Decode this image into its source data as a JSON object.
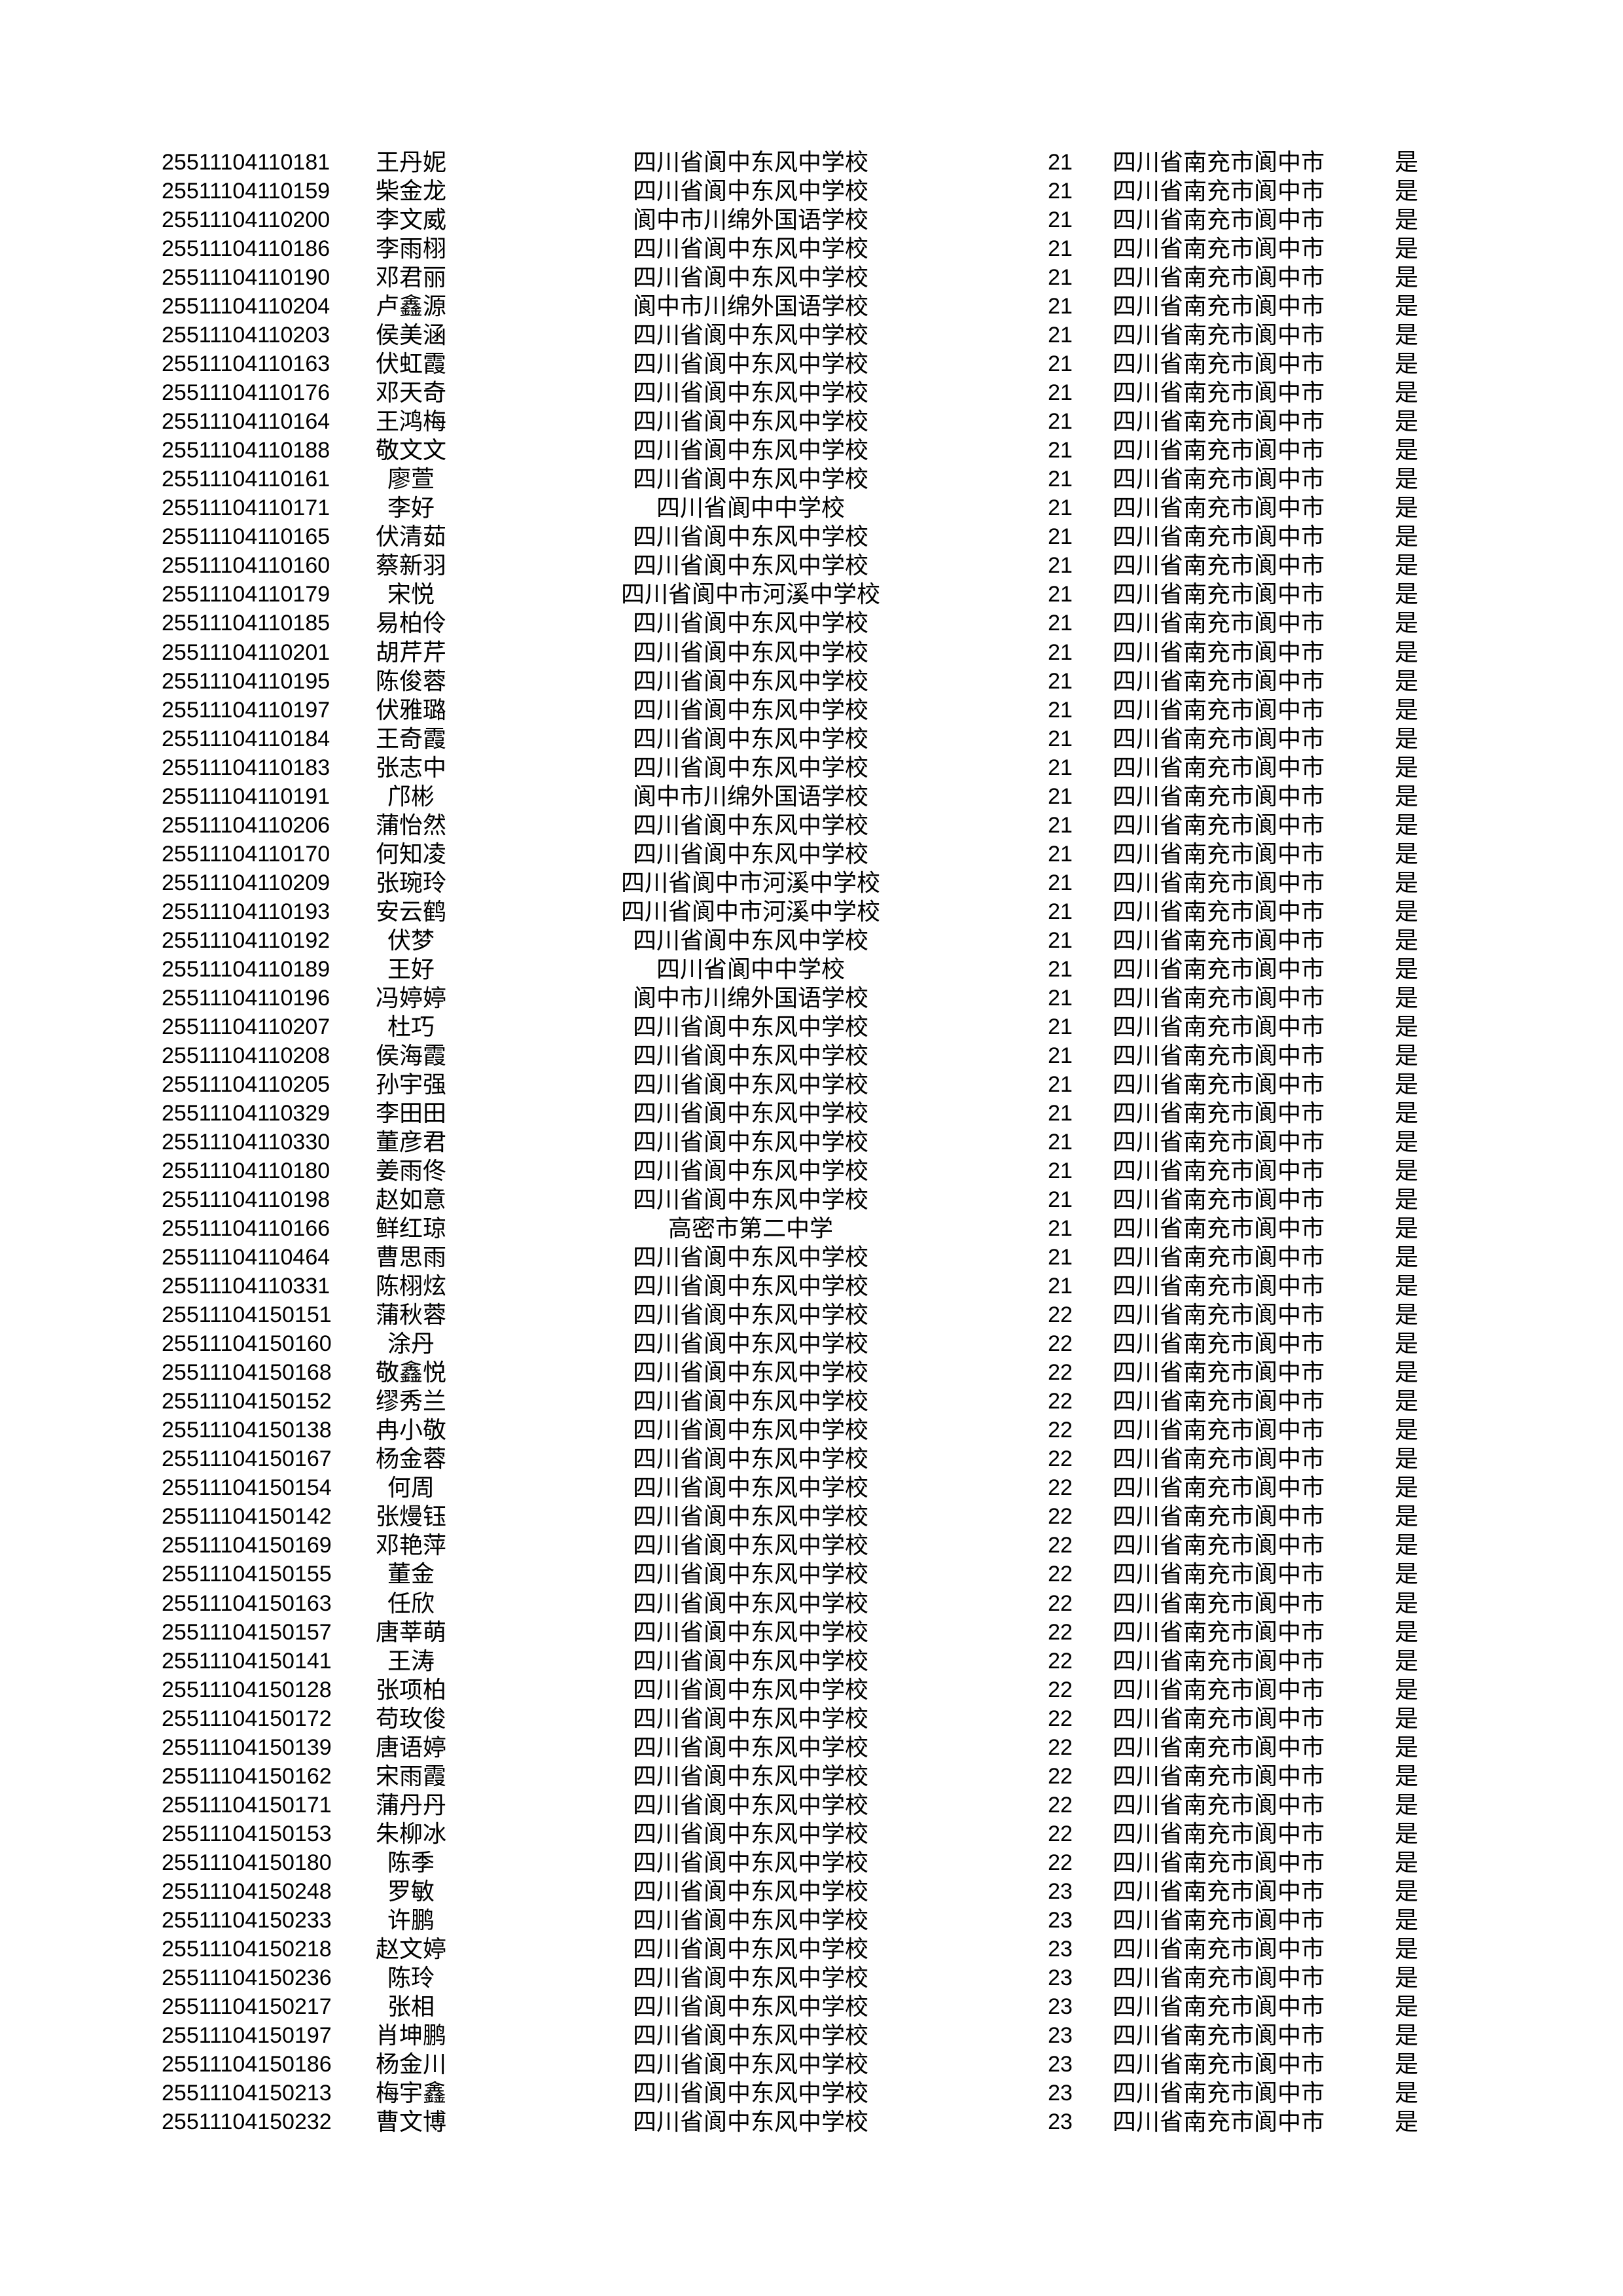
{
  "page": {
    "background": "#ffffff",
    "text_color": "#000000"
  },
  "table": {
    "rows": [
      {
        "id": "25511104110181",
        "name": "王丹妮",
        "school": "四川省阆中东风中学校",
        "num": "21",
        "region": "四川省南充市阆中市",
        "flag": "是"
      },
      {
        "id": "25511104110159",
        "name": "柴金龙",
        "school": "四川省阆中东风中学校",
        "num": "21",
        "region": "四川省南充市阆中市",
        "flag": "是"
      },
      {
        "id": "25511104110200",
        "name": "李文威",
        "school": "阆中市川绵外国语学校",
        "num": "21",
        "region": "四川省南充市阆中市",
        "flag": "是"
      },
      {
        "id": "25511104110186",
        "name": "李雨栩",
        "school": "四川省阆中东风中学校",
        "num": "21",
        "region": "四川省南充市阆中市",
        "flag": "是"
      },
      {
        "id": "25511104110190",
        "name": "邓君丽",
        "school": "四川省阆中东风中学校",
        "num": "21",
        "region": "四川省南充市阆中市",
        "flag": "是"
      },
      {
        "id": "25511104110204",
        "name": "卢鑫源",
        "school": "阆中市川绵外国语学校",
        "num": "21",
        "region": "四川省南充市阆中市",
        "flag": "是"
      },
      {
        "id": "25511104110203",
        "name": "侯美涵",
        "school": "四川省阆中东风中学校",
        "num": "21",
        "region": "四川省南充市阆中市",
        "flag": "是"
      },
      {
        "id": "25511104110163",
        "name": "伏虹霞",
        "school": "四川省阆中东风中学校",
        "num": "21",
        "region": "四川省南充市阆中市",
        "flag": "是"
      },
      {
        "id": "25511104110176",
        "name": "邓天奇",
        "school": "四川省阆中东风中学校",
        "num": "21",
        "region": "四川省南充市阆中市",
        "flag": "是"
      },
      {
        "id": "25511104110164",
        "name": "王鸿梅",
        "school": "四川省阆中东风中学校",
        "num": "21",
        "region": "四川省南充市阆中市",
        "flag": "是"
      },
      {
        "id": "25511104110188",
        "name": "敬文文",
        "school": "四川省阆中东风中学校",
        "num": "21",
        "region": "四川省南充市阆中市",
        "flag": "是"
      },
      {
        "id": "25511104110161",
        "name": "廖萱",
        "school": "四川省阆中东风中学校",
        "num": "21",
        "region": "四川省南充市阆中市",
        "flag": "是"
      },
      {
        "id": "25511104110171",
        "name": "李好",
        "school": "四川省阆中中学校",
        "num": "21",
        "region": "四川省南充市阆中市",
        "flag": "是"
      },
      {
        "id": "25511104110165",
        "name": "伏清茹",
        "school": "四川省阆中东风中学校",
        "num": "21",
        "region": "四川省南充市阆中市",
        "flag": "是"
      },
      {
        "id": "25511104110160",
        "name": "蔡新羽",
        "school": "四川省阆中东风中学校",
        "num": "21",
        "region": "四川省南充市阆中市",
        "flag": "是"
      },
      {
        "id": "25511104110179",
        "name": "宋悦",
        "school": "四川省阆中市河溪中学校",
        "num": "21",
        "region": "四川省南充市阆中市",
        "flag": "是"
      },
      {
        "id": "25511104110185",
        "name": "易柏伶",
        "school": "四川省阆中东风中学校",
        "num": "21",
        "region": "四川省南充市阆中市",
        "flag": "是"
      },
      {
        "id": "25511104110201",
        "name": "胡芹芹",
        "school": "四川省阆中东风中学校",
        "num": "21",
        "region": "四川省南充市阆中市",
        "flag": "是"
      },
      {
        "id": "25511104110195",
        "name": "陈俊蓉",
        "school": "四川省阆中东风中学校",
        "num": "21",
        "region": "四川省南充市阆中市",
        "flag": "是"
      },
      {
        "id": "25511104110197",
        "name": "伏雅璐",
        "school": "四川省阆中东风中学校",
        "num": "21",
        "region": "四川省南充市阆中市",
        "flag": "是"
      },
      {
        "id": "25511104110184",
        "name": "王奇霞",
        "school": "四川省阆中东风中学校",
        "num": "21",
        "region": "四川省南充市阆中市",
        "flag": "是"
      },
      {
        "id": "25511104110183",
        "name": "张志中",
        "school": "四川省阆中东风中学校",
        "num": "21",
        "region": "四川省南充市阆中市",
        "flag": "是"
      },
      {
        "id": "25511104110191",
        "name": "邝彬",
        "school": "阆中市川绵外国语学校",
        "num": "21",
        "region": "四川省南充市阆中市",
        "flag": "是"
      },
      {
        "id": "25511104110206",
        "name": "蒲怡然",
        "school": "四川省阆中东风中学校",
        "num": "21",
        "region": "四川省南充市阆中市",
        "flag": "是"
      },
      {
        "id": "25511104110170",
        "name": "何知凌",
        "school": "四川省阆中东风中学校",
        "num": "21",
        "region": "四川省南充市阆中市",
        "flag": "是"
      },
      {
        "id": "25511104110209",
        "name": "张琬玲",
        "school": "四川省阆中市河溪中学校",
        "num": "21",
        "region": "四川省南充市阆中市",
        "flag": "是"
      },
      {
        "id": "25511104110193",
        "name": "安云鹤",
        "school": "四川省阆中市河溪中学校",
        "num": "21",
        "region": "四川省南充市阆中市",
        "flag": "是"
      },
      {
        "id": "25511104110192",
        "name": "伏梦",
        "school": "四川省阆中东风中学校",
        "num": "21",
        "region": "四川省南充市阆中市",
        "flag": "是"
      },
      {
        "id": "25511104110189",
        "name": "王好",
        "school": "四川省阆中中学校",
        "num": "21",
        "region": "四川省南充市阆中市",
        "flag": "是"
      },
      {
        "id": "25511104110196",
        "name": "冯婷婷",
        "school": "阆中市川绵外国语学校",
        "num": "21",
        "region": "四川省南充市阆中市",
        "flag": "是"
      },
      {
        "id": "25511104110207",
        "name": "杜巧",
        "school": "四川省阆中东风中学校",
        "num": "21",
        "region": "四川省南充市阆中市",
        "flag": "是"
      },
      {
        "id": "25511104110208",
        "name": "侯海霞",
        "school": "四川省阆中东风中学校",
        "num": "21",
        "region": "四川省南充市阆中市",
        "flag": "是"
      },
      {
        "id": "25511104110205",
        "name": "孙宇强",
        "school": "四川省阆中东风中学校",
        "num": "21",
        "region": "四川省南充市阆中市",
        "flag": "是"
      },
      {
        "id": "25511104110329",
        "name": "李田田",
        "school": "四川省阆中东风中学校",
        "num": "21",
        "region": "四川省南充市阆中市",
        "flag": "是"
      },
      {
        "id": "25511104110330",
        "name": "董彦君",
        "school": "四川省阆中东风中学校",
        "num": "21",
        "region": "四川省南充市阆中市",
        "flag": "是"
      },
      {
        "id": "25511104110180",
        "name": "姜雨佟",
        "school": "四川省阆中东风中学校",
        "num": "21",
        "region": "四川省南充市阆中市",
        "flag": "是"
      },
      {
        "id": "25511104110198",
        "name": "赵如意",
        "school": "四川省阆中东风中学校",
        "num": "21",
        "region": "四川省南充市阆中市",
        "flag": "是"
      },
      {
        "id": "25511104110166",
        "name": "鲜红琼",
        "school": "高密市第二中学",
        "num": "21",
        "region": "四川省南充市阆中市",
        "flag": "是"
      },
      {
        "id": "25511104110464",
        "name": "曹思雨",
        "school": "四川省阆中东风中学校",
        "num": "21",
        "region": "四川省南充市阆中市",
        "flag": "是"
      },
      {
        "id": "25511104110331",
        "name": "陈栩炫",
        "school": "四川省阆中东风中学校",
        "num": "21",
        "region": "四川省南充市阆中市",
        "flag": "是"
      },
      {
        "id": "25511104150151",
        "name": "蒲秋蓉",
        "school": "四川省阆中东风中学校",
        "num": "22",
        "region": "四川省南充市阆中市",
        "flag": "是"
      },
      {
        "id": "25511104150160",
        "name": "涂丹",
        "school": "四川省阆中东风中学校",
        "num": "22",
        "region": "四川省南充市阆中市",
        "flag": "是"
      },
      {
        "id": "25511104150168",
        "name": "敬鑫悦",
        "school": "四川省阆中东风中学校",
        "num": "22",
        "region": "四川省南充市阆中市",
        "flag": "是"
      },
      {
        "id": "25511104150152",
        "name": "缪秀兰",
        "school": "四川省阆中东风中学校",
        "num": "22",
        "region": "四川省南充市阆中市",
        "flag": "是"
      },
      {
        "id": "25511104150138",
        "name": "冉小敬",
        "school": "四川省阆中东风中学校",
        "num": "22",
        "region": "四川省南充市阆中市",
        "flag": "是"
      },
      {
        "id": "25511104150167",
        "name": "杨金蓉",
        "school": "四川省阆中东风中学校",
        "num": "22",
        "region": "四川省南充市阆中市",
        "flag": "是"
      },
      {
        "id": "25511104150154",
        "name": "何周",
        "school": "四川省阆中东风中学校",
        "num": "22",
        "region": "四川省南充市阆中市",
        "flag": "是"
      },
      {
        "id": "25511104150142",
        "name": "张熳钰",
        "school": "四川省阆中东风中学校",
        "num": "22",
        "region": "四川省南充市阆中市",
        "flag": "是"
      },
      {
        "id": "25511104150169",
        "name": "邓艳萍",
        "school": "四川省阆中东风中学校",
        "num": "22",
        "region": "四川省南充市阆中市",
        "flag": "是"
      },
      {
        "id": "25511104150155",
        "name": "董金",
        "school": "四川省阆中东风中学校",
        "num": "22",
        "region": "四川省南充市阆中市",
        "flag": "是"
      },
      {
        "id": "25511104150163",
        "name": "任欣",
        "school": "四川省阆中东风中学校",
        "num": "22",
        "region": "四川省南充市阆中市",
        "flag": "是"
      },
      {
        "id": "25511104150157",
        "name": "唐莘萌",
        "school": "四川省阆中东风中学校",
        "num": "22",
        "region": "四川省南充市阆中市",
        "flag": "是"
      },
      {
        "id": "25511104150141",
        "name": "王涛",
        "school": "四川省阆中东风中学校",
        "num": "22",
        "region": "四川省南充市阆中市",
        "flag": "是"
      },
      {
        "id": "25511104150128",
        "name": "张项柏",
        "school": "四川省阆中东风中学校",
        "num": "22",
        "region": "四川省南充市阆中市",
        "flag": "是"
      },
      {
        "id": "25511104150172",
        "name": "苟玫俊",
        "school": "四川省阆中东风中学校",
        "num": "22",
        "region": "四川省南充市阆中市",
        "flag": "是"
      },
      {
        "id": "25511104150139",
        "name": "唐语婷",
        "school": "四川省阆中东风中学校",
        "num": "22",
        "region": "四川省南充市阆中市",
        "flag": "是"
      },
      {
        "id": "25511104150162",
        "name": "宋雨霞",
        "school": "四川省阆中东风中学校",
        "num": "22",
        "region": "四川省南充市阆中市",
        "flag": "是"
      },
      {
        "id": "25511104150171",
        "name": "蒲丹丹",
        "school": "四川省阆中东风中学校",
        "num": "22",
        "region": "四川省南充市阆中市",
        "flag": "是"
      },
      {
        "id": "25511104150153",
        "name": "朱柳冰",
        "school": "四川省阆中东风中学校",
        "num": "22",
        "region": "四川省南充市阆中市",
        "flag": "是"
      },
      {
        "id": "25511104150180",
        "name": "陈季",
        "school": "四川省阆中东风中学校",
        "num": "22",
        "region": "四川省南充市阆中市",
        "flag": "是"
      },
      {
        "id": "25511104150248",
        "name": "罗敏",
        "school": "四川省阆中东风中学校",
        "num": "23",
        "region": "四川省南充市阆中市",
        "flag": "是"
      },
      {
        "id": "25511104150233",
        "name": "许鹏",
        "school": "四川省阆中东风中学校",
        "num": "23",
        "region": "四川省南充市阆中市",
        "flag": "是"
      },
      {
        "id": "25511104150218",
        "name": "赵文婷",
        "school": "四川省阆中东风中学校",
        "num": "23",
        "region": "四川省南充市阆中市",
        "flag": "是"
      },
      {
        "id": "25511104150236",
        "name": "陈玲",
        "school": "四川省阆中东风中学校",
        "num": "23",
        "region": "四川省南充市阆中市",
        "flag": "是"
      },
      {
        "id": "25511104150217",
        "name": "张相",
        "school": "四川省阆中东风中学校",
        "num": "23",
        "region": "四川省南充市阆中市",
        "flag": "是"
      },
      {
        "id": "25511104150197",
        "name": "肖坤鹏",
        "school": "四川省阆中东风中学校",
        "num": "23",
        "region": "四川省南充市阆中市",
        "flag": "是"
      },
      {
        "id": "25511104150186",
        "name": "杨金川",
        "school": "四川省阆中东风中学校",
        "num": "23",
        "region": "四川省南充市阆中市",
        "flag": "是"
      },
      {
        "id": "25511104150213",
        "name": "梅宇鑫",
        "school": "四川省阆中东风中学校",
        "num": "23",
        "region": "四川省南充市阆中市",
        "flag": "是"
      },
      {
        "id": "25511104150232",
        "name": "曹文博",
        "school": "四川省阆中东风中学校",
        "num": "23",
        "region": "四川省南充市阆中市",
        "flag": "是"
      }
    ]
  }
}
